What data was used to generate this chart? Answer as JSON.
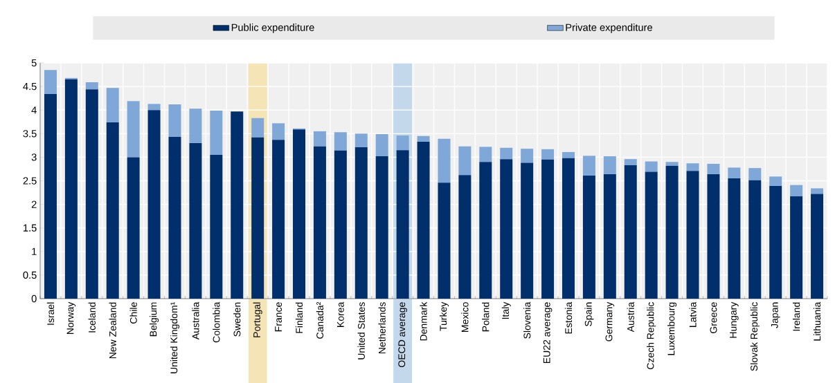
{
  "chart_data": {
    "type": "bar",
    "stacked": true,
    "categories": [
      "Israel",
      "Norway",
      "Iceland",
      "New Zealand",
      "Chile",
      "Belgium",
      "United Kingdom¹",
      "Australia",
      "Colombia",
      "Sweden",
      "Portugal",
      "France",
      "Finland",
      "Canada²",
      "Korea",
      "United States",
      "Netherlands",
      "OECD average",
      "Denmark",
      "Turkey",
      "Mexico",
      "Poland",
      "Italy",
      "Slovenia",
      "EU22 average",
      "Estonia",
      "Spain",
      "Germany",
      "Austria",
      "Czech Republic",
      "Luxembourg",
      "Latvia",
      "Greece",
      "Hungary",
      "Slovak Republic",
      "Japan",
      "Ireland",
      "Lithuania"
    ],
    "series": [
      {
        "name": "Public expenditure",
        "color": "#002f6c",
        "values": [
          4.34,
          4.65,
          4.44,
          3.74,
          3.0,
          4.0,
          3.43,
          3.3,
          3.05,
          3.97,
          3.42,
          3.37,
          3.59,
          3.23,
          3.14,
          3.21,
          3.02,
          3.15,
          3.33,
          2.46,
          2.62,
          2.9,
          2.96,
          2.88,
          2.95,
          2.98,
          2.61,
          2.64,
          2.83,
          2.69,
          2.82,
          2.71,
          2.64,
          2.55,
          2.51,
          2.39,
          2.17,
          2.22
        ]
      },
      {
        "name": "Private expenditure",
        "color": "#7fa8d9",
        "values": [
          0.51,
          0.03,
          0.15,
          0.73,
          1.19,
          0.13,
          0.69,
          0.73,
          0.94,
          0,
          0.41,
          0.35,
          0.02,
          0.32,
          0.39,
          0.29,
          0.47,
          0.31,
          0.12,
          0.93,
          0.61,
          0.32,
          0.24,
          0.3,
          0.22,
          0.13,
          0.42,
          0.38,
          0.13,
          0.22,
          0.08,
          0.16,
          0.22,
          0.23,
          0.26,
          0.2,
          0.24,
          0.12
        ]
      }
    ],
    "ylim": [
      0,
      5
    ],
    "yticks": [
      0,
      0.5,
      1,
      1.5,
      2,
      2.5,
      3,
      3.5,
      4,
      4.5,
      5
    ],
    "grid": true,
    "legend": "top",
    "bands": [
      {
        "axis": "x",
        "from": "Portugal",
        "to": "Portugal",
        "color": "#f5e4b5"
      },
      {
        "axis": "x",
        "from": "OECD average",
        "to": "OECD average",
        "color": "#c3d8ea"
      }
    ]
  }
}
